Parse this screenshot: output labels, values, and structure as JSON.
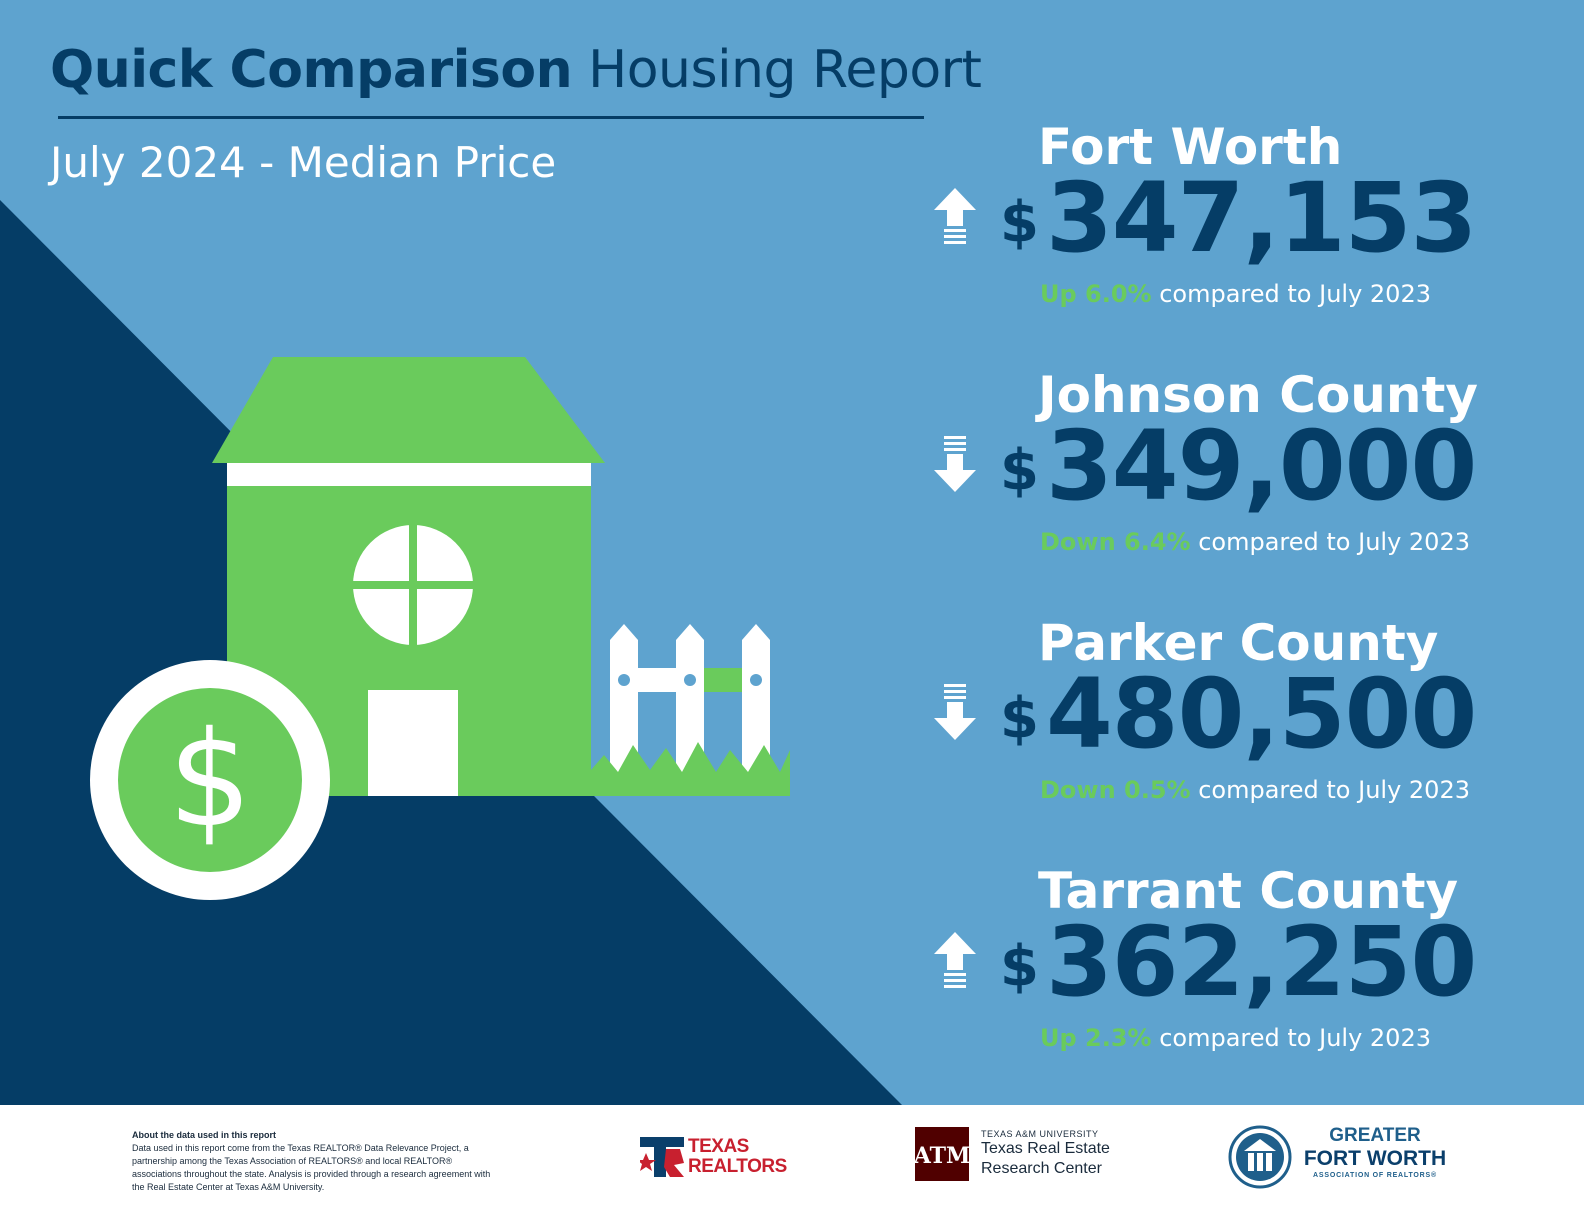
{
  "header": {
    "title_bold": "Quick Comparison",
    "title_light": "Housing Report",
    "subtitle": "July 2024 - Median Price"
  },
  "stats": [
    {
      "name": "Fort Worth",
      "dollar": "$",
      "amount": "347,153",
      "direction": "up",
      "pct": "Up 6.0%",
      "rest": " compared to July 2023"
    },
    {
      "name": "Johnson County",
      "dollar": "$",
      "amount": "349,000",
      "direction": "down",
      "pct": "Down 6.4%",
      "rest": " compared to July 2023"
    },
    {
      "name": "Parker County",
      "dollar": "$",
      "amount": "480,500",
      "direction": "down",
      "pct": "Down 0.5%",
      "rest": " compared to July 2023"
    },
    {
      "name": "Tarrant County",
      "dollar": "$",
      "amount": "362,250",
      "direction": "up",
      "pct": "Up 2.3%",
      "rest": " compared to July 2023"
    }
  ],
  "footer": {
    "about_heading": "About the data used in this report",
    "about_body": "Data used in this report come from the Texas REALTOR® Data Relevance Project, a partnership among the Texas Association of REALTORS® and local REALTOR® associations throughout the state. Analysis is provided through a research agreement with the Real Estate Center at Texas A&M University.",
    "texas_realtors": {
      "line1": "TEXAS",
      "line2": "REALTORS"
    },
    "tamu": {
      "line_small": "TEXAS A&M UNIVERSITY",
      "line1": "Texas Real Estate",
      "line2": "Research Center"
    },
    "gfw": {
      "line1": "GREATER",
      "line2": "FORT WORTH",
      "line3": "ASSOCIATION OF REALTORS®"
    }
  },
  "colors": {
    "background": "#5ea3cf",
    "navy": "#053d66",
    "green": "#6acb5c",
    "white": "#ffffff",
    "texas_red": "#c8202f",
    "aggie_maroon": "#500000"
  },
  "icons": [
    "up-arrow-icon",
    "down-arrow-icon",
    "house-icon",
    "dollar-coin-icon",
    "picket-fence-icon"
  ]
}
